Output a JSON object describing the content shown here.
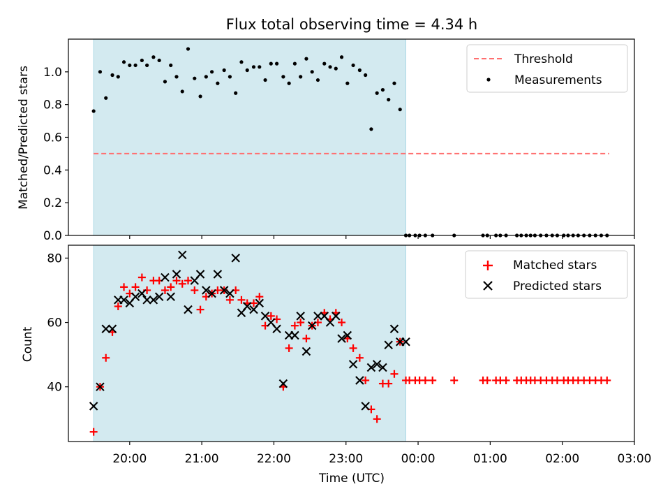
{
  "chart_data": [
    {
      "type": "scatter",
      "title": "Flux total observing time = 4.34 h",
      "xlabel": "",
      "ylabel": "Matched/Predicted stars",
      "ylim": [
        0,
        1.2
      ],
      "yticks": [
        "0.0",
        "0.2",
        "0.4",
        "0.6",
        "0.8",
        "1.0"
      ],
      "ytick_values": [
        0,
        0.2,
        0.4,
        0.6,
        0.8,
        1.0
      ],
      "xlim_hours": [
        19.15,
        27.0
      ],
      "shaded_region_hours": [
        19.5,
        23.83
      ],
      "shade_color": "#d3eaf0",
      "legend": [
        "Threshold",
        "Measurements"
      ],
      "legend_position": "top-right",
      "threshold": {
        "name": "Threshold",
        "value": 0.5,
        "x_range_hours": [
          19.5,
          26.65
        ],
        "color": "#ff6f6f"
      },
      "series": [
        {
          "name": "Measurements",
          "color": "#000000",
          "x_hours": [
            19.5,
            19.59,
            19.67,
            19.76,
            19.84,
            19.92,
            20.0,
            20.08,
            20.17,
            20.24,
            20.33,
            20.41,
            20.49,
            20.57,
            20.65,
            20.73,
            20.81,
            20.9,
            20.98,
            21.06,
            21.14,
            21.22,
            21.31,
            21.39,
            21.47,
            21.55,
            21.63,
            21.72,
            21.8,
            21.88,
            21.96,
            22.04,
            22.13,
            22.21,
            22.29,
            22.37,
            22.45,
            22.53,
            22.61,
            22.7,
            22.78,
            22.86,
            22.94,
            23.02,
            23.1,
            23.19,
            23.27,
            23.35,
            23.43,
            23.51,
            23.59,
            23.67,
            23.75,
            23.83,
            23.88,
            23.96,
            24.02,
            24.1,
            24.2,
            24.5,
            24.9,
            24.96,
            25.08,
            25.14,
            25.22,
            25.37,
            25.43,
            25.5,
            25.56,
            25.62,
            25.7,
            25.78,
            25.86,
            25.93,
            26.02,
            26.08,
            26.15,
            26.22,
            26.3,
            26.38,
            26.46,
            26.54,
            26.62
          ],
          "y": [
            0.76,
            1.0,
            0.84,
            0.98,
            0.97,
            1.06,
            1.04,
            1.04,
            1.07,
            1.04,
            1.09,
            1.07,
            0.94,
            1.04,
            0.97,
            0.88,
            1.14,
            0.96,
            0.85,
            0.97,
            1.0,
            0.93,
            1.01,
            0.97,
            0.87,
            1.06,
            1.01,
            1.03,
            1.03,
            0.95,
            1.05,
            1.05,
            0.97,
            0.93,
            1.05,
            0.97,
            1.08,
            1.0,
            0.95,
            1.05,
            1.03,
            1.02,
            1.09,
            0.93,
            1.04,
            1.01,
            0.98,
            0.65,
            0.87,
            0.89,
            0.83,
            0.93,
            0.77,
            0,
            0,
            0,
            0,
            0,
            0,
            0,
            0,
            0,
            0,
            0,
            0,
            0,
            0,
            0,
            0,
            0,
            0,
            0,
            0,
            0,
            0,
            0,
            0,
            0,
            0,
            0,
            0,
            0,
            0
          ]
        }
      ]
    },
    {
      "type": "scatter",
      "title": "",
      "xlabel": "Time (UTC)",
      "ylabel": "Count",
      "ylim": [
        23,
        84
      ],
      "yticks": [
        "40",
        "60",
        "80"
      ],
      "ytick_values": [
        40,
        60,
        80
      ],
      "xlim_hours": [
        19.15,
        27.0
      ],
      "xticks": [
        "20:00",
        "21:00",
        "22:00",
        "23:00",
        "00:00",
        "01:00",
        "02:00",
        "03:00"
      ],
      "xtick_hours": [
        20,
        21,
        22,
        23,
        24,
        25,
        26,
        27
      ],
      "shaded_region_hours": [
        19.5,
        23.83
      ],
      "shade_color": "#d3eaf0",
      "legend": [
        "Matched stars",
        "Predicted stars"
      ],
      "legend_position": "top-right",
      "series": [
        {
          "name": "Matched stars",
          "marker": "plus",
          "color": "#ff0000",
          "x_hours": [
            19.5,
            19.59,
            19.67,
            19.76,
            19.84,
            19.92,
            20.0,
            20.08,
            20.17,
            20.24,
            20.33,
            20.41,
            20.49,
            20.57,
            20.65,
            20.73,
            20.81,
            20.9,
            20.98,
            21.06,
            21.14,
            21.22,
            21.31,
            21.39,
            21.47,
            21.55,
            21.63,
            21.72,
            21.8,
            21.88,
            21.96,
            22.04,
            22.13,
            22.21,
            22.29,
            22.37,
            22.45,
            22.53,
            22.61,
            22.7,
            22.78,
            22.86,
            22.94,
            23.02,
            23.1,
            23.19,
            23.27,
            23.35,
            23.43,
            23.51,
            23.59,
            23.67,
            23.75,
            23.83,
            23.88,
            23.96,
            24.02,
            24.1,
            24.2,
            24.5,
            24.9,
            24.96,
            25.08,
            25.14,
            25.22,
            25.37,
            25.43,
            25.5,
            25.56,
            25.62,
            25.7,
            25.78,
            25.86,
            25.93,
            26.02,
            26.08,
            26.15,
            26.22,
            26.3,
            26.38,
            26.46,
            26.54,
            26.62
          ],
          "y": [
            26,
            40,
            49,
            57,
            65,
            71,
            69,
            71,
            74,
            70,
            73,
            73,
            70,
            71,
            73,
            72,
            73,
            70,
            64,
            68,
            69,
            70,
            70,
            67,
            70,
            67,
            66,
            66,
            68,
            59,
            62,
            61,
            40,
            52,
            59,
            60,
            55,
            59,
            60,
            63,
            61,
            63,
            60,
            55,
            52,
            49,
            42,
            33,
            30,
            41,
            41,
            44,
            54,
            42,
            42,
            42,
            42,
            42,
            42,
            42,
            42,
            42,
            42,
            42,
            42,
            42,
            42,
            42,
            42,
            42,
            42,
            42,
            42,
            42,
            42,
            42,
            42,
            42,
            42,
            42,
            42,
            42,
            42
          ]
        },
        {
          "name": "Predicted stars",
          "marker": "x",
          "color": "#000000",
          "x_hours": [
            19.5,
            19.59,
            19.67,
            19.76,
            19.84,
            19.92,
            20.0,
            20.08,
            20.17,
            20.24,
            20.33,
            20.41,
            20.49,
            20.57,
            20.65,
            20.73,
            20.81,
            20.9,
            20.98,
            21.06,
            21.14,
            21.22,
            21.31,
            21.39,
            21.47,
            21.55,
            21.63,
            21.72,
            21.8,
            21.88,
            21.96,
            22.04,
            22.13,
            22.21,
            22.29,
            22.37,
            22.45,
            22.53,
            22.61,
            22.7,
            22.78,
            22.86,
            22.94,
            23.02,
            23.1,
            23.19,
            23.27,
            23.35,
            23.43,
            23.51,
            23.59,
            23.67,
            23.75,
            23.83
          ],
          "y": [
            34,
            40,
            58,
            58,
            67,
            67,
            66,
            68,
            69,
            67,
            67,
            68,
            74,
            68,
            75,
            81,
            64,
            73,
            75,
            70,
            69,
            75,
            70,
            69,
            80,
            63,
            65,
            64,
            66,
            62,
            60,
            58,
            41,
            56,
            56,
            62,
            51,
            59,
            62,
            62,
            60,
            62,
            55,
            56,
            47,
            42,
            34,
            46,
            47,
            46,
            53,
            58,
            54,
            54
          ]
        }
      ]
    }
  ]
}
